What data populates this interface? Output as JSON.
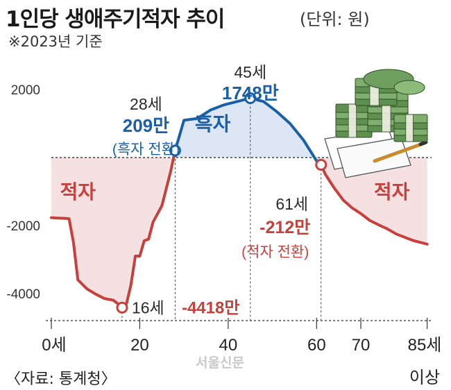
{
  "title": "1인당 생애주기적자 추이",
  "unit": "(단위: 원)",
  "subtitle": "※2023년 기준",
  "source": "〈자료: 통계청〉",
  "watermark": "서울신문",
  "colors": {
    "deficit": "#c8403b",
    "surplus": "#1a5fa8",
    "deficit_fill": "#f6e1e2",
    "surplus_fill": "#dde6f4",
    "text": "#2a2a2a"
  },
  "chart_data": {
    "type": "line",
    "x": [
      0,
      1,
      3,
      4,
      5,
      6,
      8,
      10,
      12,
      14,
      15,
      16,
      17,
      18,
      19,
      20,
      21,
      22,
      23,
      25,
      27,
      28,
      30,
      33,
      36,
      39,
      42,
      45,
      48,
      51,
      54,
      57,
      60,
      61,
      62,
      64,
      66,
      68,
      70,
      72,
      74,
      76,
      78,
      80,
      82,
      85
    ],
    "y": [
      -1770,
      -1780,
      -1790,
      -1800,
      -2500,
      -3600,
      -3860,
      -4020,
      -4150,
      -4200,
      -4300,
      -4418,
      -4300,
      -3750,
      -2900,
      -2900,
      -2450,
      -2400,
      -1900,
      -1420,
      -400,
      209,
      1100,
      1150,
      1400,
      1550,
      1650,
      1748,
      1650,
      1350,
      1000,
      520,
      -100,
      -212,
      -500,
      -900,
      -1250,
      -1480,
      -1650,
      -1850,
      -1980,
      -2100,
      -2250,
      -2350,
      -2450,
      -2550
    ],
    "xlim": [
      0,
      86
    ],
    "ylim": [
      -4800,
      2800
    ],
    "x_ticks": [
      "0세",
      "20",
      "40",
      "60",
      "70",
      "85세"
    ],
    "x_tick_values": [
      0,
      20,
      40,
      60,
      70,
      85
    ],
    "x_last_tick_line2": "이상",
    "y_ticks": [
      "2000",
      "-2000",
      "-4000"
    ],
    "y_tick_values": [
      2000,
      -2000,
      -4000
    ],
    "regions": [
      {
        "label": "적자",
        "kind": "deficit"
      },
      {
        "label": "흑자",
        "kind": "surplus"
      },
      {
        "label": "적자",
        "kind": "deficit"
      }
    ],
    "annotations": [
      {
        "x": 16,
        "y": -4418,
        "age": "16세",
        "value": "-4418만",
        "note": "",
        "kind": "deficit"
      },
      {
        "x": 28,
        "y": 209,
        "age": "28세",
        "value": "209만",
        "note": "(흑자 전환)",
        "kind": "surplus"
      },
      {
        "x": 45,
        "y": 1748,
        "age": "45세",
        "value": "1748만",
        "note": "",
        "kind": "surplus"
      },
      {
        "x": 61,
        "y": -212,
        "age": "61세",
        "value": "-212만",
        "note": "(적자 전환)",
        "kind": "deficit"
      }
    ]
  }
}
